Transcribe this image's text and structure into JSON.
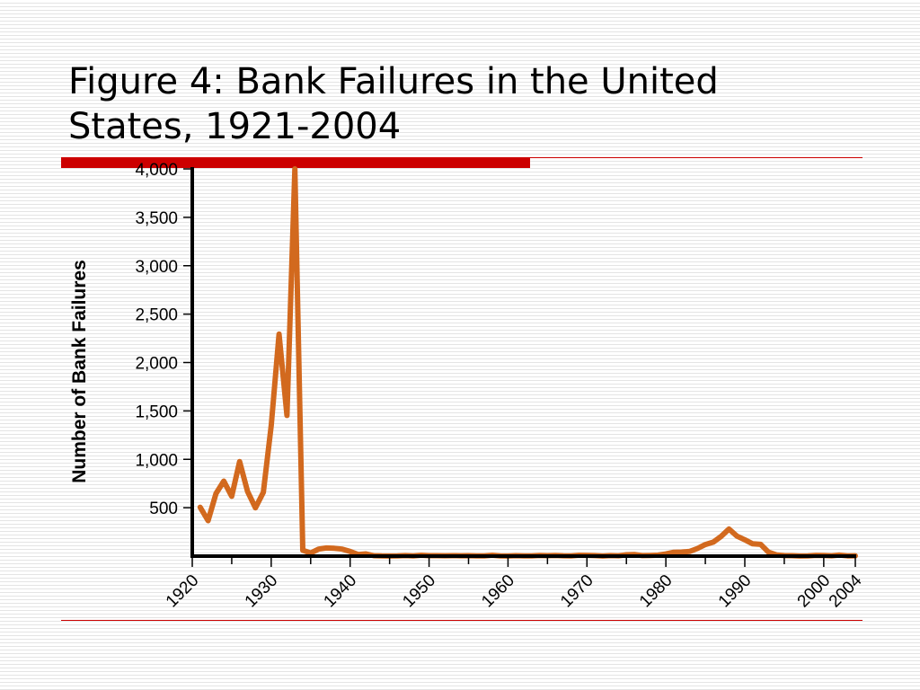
{
  "slide": {
    "title_line1": "Figure 4:  Bank Failures in the United",
    "title_line2": "States, 1921-2004"
  },
  "colors": {
    "accent": "#cc0000",
    "series": "#d2691e",
    "axis": "#000000"
  },
  "chart_data": {
    "type": "line",
    "title": "Figure 4:  Bank Failures in the United States, 1921-2004",
    "xlabel": "",
    "ylabel": "Number of Bank Failures",
    "xlim": [
      1920,
      2004
    ],
    "ylim": [
      0,
      4000
    ],
    "xticks": [
      1920,
      1930,
      1940,
      1950,
      1960,
      1970,
      1980,
      1990,
      2000,
      2004
    ],
    "xtick_labels": [
      "1920",
      "1930",
      "1940",
      "1950",
      "1960",
      "1970",
      "1980",
      "1990",
      "2000",
      "2004"
    ],
    "yticks": [
      500,
      1000,
      1500,
      2000,
      2500,
      3000,
      3500,
      4000
    ],
    "ytick_labels": [
      "500",
      "1,000",
      "1,500",
      "2,000",
      "2,500",
      "3,000",
      "3,500",
      "4,000"
    ],
    "grid": false,
    "series": [
      {
        "x": [
          1921,
          1922,
          1923,
          1924,
          1925,
          1926,
          1927,
          1928,
          1929,
          1930,
          1931,
          1932,
          1933,
          1934,
          1935,
          1936,
          1937,
          1938,
          1939,
          1940,
          1941,
          1942,
          1943,
          1944,
          1945,
          1946,
          1947,
          1948,
          1949,
          1950,
          1951,
          1952,
          1953,
          1954,
          1955,
          1956,
          1957,
          1958,
          1959,
          1960,
          1961,
          1962,
          1963,
          1964,
          1965,
          1966,
          1967,
          1968,
          1969,
          1970,
          1971,
          1972,
          1973,
          1974,
          1975,
          1976,
          1977,
          1978,
          1979,
          1980,
          1981,
          1982,
          1983,
          1984,
          1985,
          1986,
          1987,
          1988,
          1989,
          1990,
          1991,
          1992,
          1993,
          1994,
          1995,
          1996,
          1997,
          1998,
          1999,
          2000,
          2001,
          2002,
          2003,
          2004
        ],
        "values": [
          505,
          367,
          646,
          775,
          618,
          976,
          669,
          499,
          659,
          1350,
          2293,
          1453,
          4000,
          61,
          32,
          72,
          84,
          81,
          72,
          48,
          17,
          23,
          5,
          2,
          1,
          2,
          6,
          3,
          9,
          5,
          5,
          4,
          5,
          4,
          5,
          3,
          3,
          9,
          3,
          1,
          5,
          2,
          2,
          7,
          5,
          7,
          4,
          3,
          9,
          8,
          6,
          1,
          6,
          4,
          14,
          17,
          6,
          7,
          10,
          22,
          40,
          42,
          48,
          79,
          120,
          145,
          203,
          280,
          207,
          169,
          127,
          122,
          41,
          13,
          6,
          5,
          1,
          3,
          8,
          7,
          4,
          11,
          3,
          4
        ]
      }
    ]
  }
}
